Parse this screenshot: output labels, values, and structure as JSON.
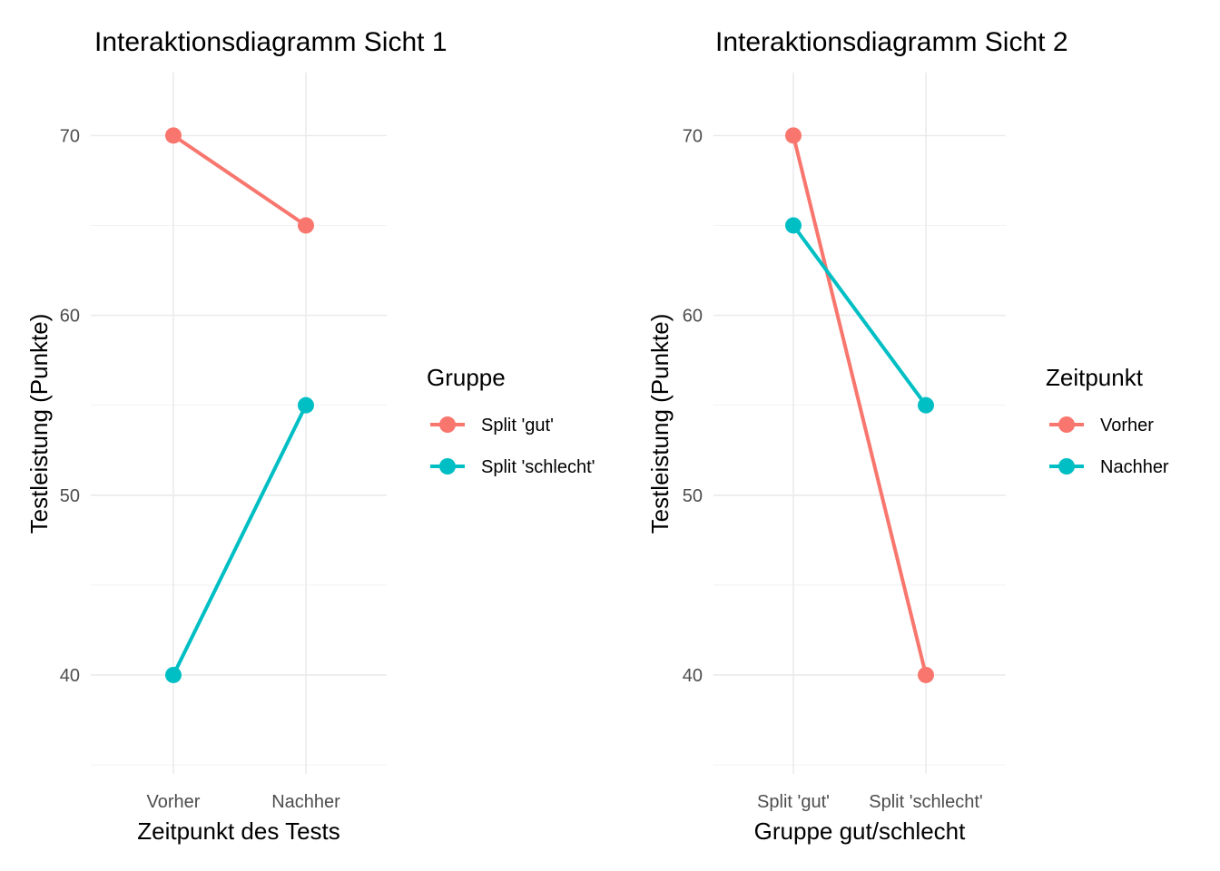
{
  "chart_data": [
    {
      "type": "line",
      "title": "Interaktionsdiagramm Sicht 1",
      "xlabel": "Zeitpunkt des Tests",
      "ylabel": "Testleistung (Punkte)",
      "categories": [
        "Vorher",
        "Nachher"
      ],
      "ylim": [
        34.5,
        73.5
      ],
      "yticks": [
        40,
        50,
        60,
        70
      ],
      "grid": true,
      "legend_title": "Gruppe",
      "legend_position": "right",
      "series": [
        {
          "name": "Split 'gut'",
          "values": [
            70,
            65
          ],
          "color": "#F8766D"
        },
        {
          "name": "Split 'schlecht'",
          "values": [
            40,
            55
          ],
          "color": "#00BFC4"
        }
      ]
    },
    {
      "type": "line",
      "title": "Interaktionsdiagramm Sicht 2",
      "xlabel": "Gruppe gut/schlecht",
      "ylabel": "Testleistung (Punkte)",
      "categories": [
        "Split 'gut'",
        "Split 'schlecht'"
      ],
      "ylim": [
        34.5,
        73.5
      ],
      "yticks": [
        40,
        50,
        60,
        70
      ],
      "grid": true,
      "legend_title": "Zeitpunkt",
      "legend_position": "right",
      "series": [
        {
          "name": "Vorher",
          "values": [
            70,
            40
          ],
          "color": "#F8766D"
        },
        {
          "name": "Nachher",
          "values": [
            65,
            55
          ],
          "color": "#00BFC4"
        }
      ]
    }
  ]
}
